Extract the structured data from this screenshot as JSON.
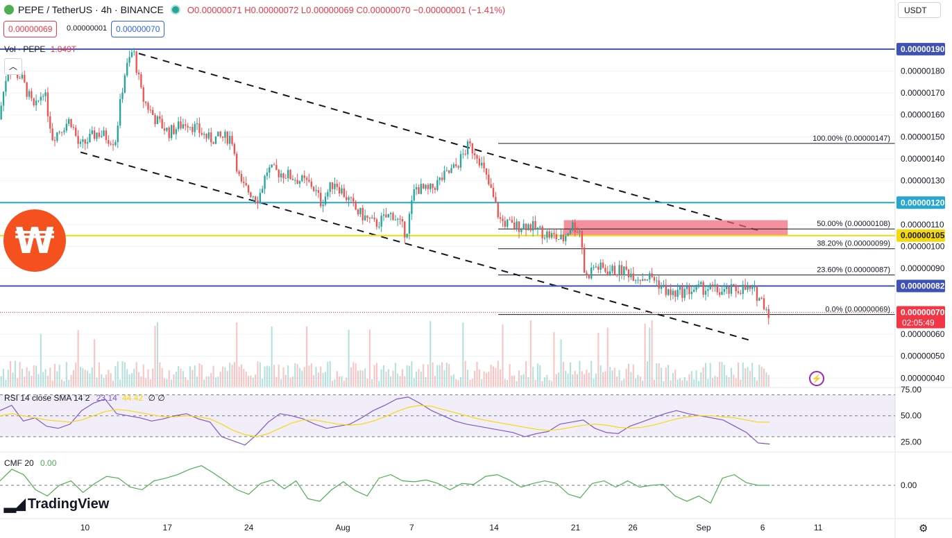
{
  "header": {
    "symbol_title": "PEPE / TetherUS · 4h · BINANCE",
    "ohlc": "O0.00000071 H0.00000072 L0.00000069 C0.00000070 −0.00000001 (−1.41%)",
    "sell_price": "0.00000069",
    "spread": "0.00000001",
    "buy_price": "0.00000070",
    "currency_select": "USDT"
  },
  "colors": {
    "up": "#26a69a",
    "down": "#ef5350",
    "resistance_blue": "#3f51b5",
    "cyan": "#26a6d1",
    "yellow": "#f5d90a",
    "rsi_line": "#7e57c2",
    "rsi_sma": "#f5d90a",
    "cmf_line": "#4caf50",
    "zone": "#f06373"
  },
  "chart_data": [
    {
      "type": "candlestick",
      "title": "PEPE / TetherUS · 4h · BINANCE",
      "volume_label": "Vol · PEPE",
      "volume_value": "1.849T",
      "ylim": [
        3.6e-07,
        1.95e-06
      ],
      "x_tick_labels": [
        "10",
        "17",
        "24",
        "Aug",
        "7",
        "14",
        "21",
        "26",
        "Sep",
        "6",
        "11"
      ],
      "y_tick_labels": [
        "0.00000180",
        "0.00000170",
        "0.00000160",
        "0.00000150",
        "0.00000140",
        "0.00000130",
        "0.00000110",
        "0.00000100",
        "0.00000090",
        "0.00000060",
        "0.00000050",
        "0.00000040"
      ],
      "horizontal_levels": [
        {
          "label": "0.00000190",
          "value": 1.9e-06,
          "color": "#3f51b5"
        },
        {
          "label": "0.00000120",
          "value": 1.2e-06,
          "color": "#26a6d1"
        },
        {
          "label": "0.00000105",
          "value": 1.05e-06,
          "color": "#f5d90a"
        },
        {
          "label": "0.00000082",
          "value": 8.2e-07,
          "color": "#3f51b5"
        }
      ],
      "last_price": {
        "label": "0.00000070",
        "countdown": "02:05:49",
        "value": 7e-07
      },
      "fibonacci": [
        {
          "label": "100.00% (0.00000147)",
          "value": 1.47e-06
        },
        {
          "label": "50.00% (0.00000108)",
          "value": 1.08e-06
        },
        {
          "label": "38.20% (0.00000099)",
          "value": 9.9e-07
        },
        {
          "label": "23.60% (0.00000087)",
          "value": 8.7e-07
        },
        {
          "label": "0.0% (0.00000069)",
          "value": 6.9e-07
        }
      ],
      "channel_upper": [
        [
          0.155,
          1.88e-06
        ],
        [
          0.85,
          1.07e-06
        ]
      ],
      "channel_lower": [
        [
          0.09,
          1.43e-06
        ],
        [
          0.84,
          5.7e-07
        ]
      ],
      "zone": {
        "from_x": 0.63,
        "to_x": 0.88,
        "low": 1.05e-06,
        "high": 1.12e-06
      },
      "price_path": [
        [
          0.0,
          1.58e-06
        ],
        [
          0.01,
          1.82e-06
        ],
        [
          0.025,
          1.77e-06
        ],
        [
          0.04,
          1.62e-06
        ],
        [
          0.05,
          1.72e-06
        ],
        [
          0.06,
          1.5e-06
        ],
        [
          0.08,
          1.58e-06
        ],
        [
          0.09,
          1.45e-06
        ],
        [
          0.11,
          1.52e-06
        ],
        [
          0.13,
          1.48e-06
        ],
        [
          0.14,
          1.78e-06
        ],
        [
          0.15,
          1.9e-06
        ],
        [
          0.16,
          1.68e-06
        ],
        [
          0.175,
          1.58e-06
        ],
        [
          0.19,
          1.52e-06
        ],
        [
          0.21,
          1.57e-06
        ],
        [
          0.235,
          1.49e-06
        ],
        [
          0.26,
          1.5e-06
        ],
        [
          0.27,
          1.28e-06
        ],
        [
          0.29,
          1.22e-06
        ],
        [
          0.3,
          1.35e-06
        ],
        [
          0.32,
          1.33e-06
        ],
        [
          0.35,
          1.28e-06
        ],
        [
          0.36,
          1.2e-06
        ],
        [
          0.375,
          1.3e-06
        ],
        [
          0.4,
          1.16e-06
        ],
        [
          0.42,
          1.1e-06
        ],
        [
          0.44,
          1.15e-06
        ],
        [
          0.455,
          1.06e-06
        ],
        [
          0.465,
          1.27e-06
        ],
        [
          0.48,
          1.25e-06
        ],
        [
          0.495,
          1.31e-06
        ],
        [
          0.51,
          1.36e-06
        ],
        [
          0.525,
          1.46e-06
        ],
        [
          0.535,
          1.42e-06
        ],
        [
          0.55,
          1.25e-06
        ],
        [
          0.56,
          1.12e-06
        ],
        [
          0.575,
          1.09e-06
        ],
        [
          0.59,
          1.1e-06
        ],
        [
          0.61,
          1.06e-06
        ],
        [
          0.63,
          1.03e-06
        ],
        [
          0.64,
          1.1e-06
        ],
        [
          0.65,
          1.07e-06
        ],
        [
          0.655,
          8.5e-07
        ],
        [
          0.665,
          9.1e-07
        ],
        [
          0.68,
          8.9e-07
        ],
        [
          0.7,
          8.9e-07
        ],
        [
          0.715,
          8.6e-07
        ],
        [
          0.73,
          8.6e-07
        ],
        [
          0.74,
          8.2e-07
        ],
        [
          0.75,
          7.8e-07
        ],
        [
          0.77,
          8e-07
        ],
        [
          0.79,
          8.1e-07
        ],
        [
          0.81,
          7.9e-07
        ],
        [
          0.83,
          8.1e-07
        ],
        [
          0.845,
          7.9e-07
        ],
        [
          0.855,
          7.4e-07
        ],
        [
          0.86,
          7e-07
        ]
      ]
    },
    {
      "type": "line",
      "title": "RSI 14 close SMA 14 2",
      "rsi_value": "23.14",
      "sma_value": "44.42",
      "extra_values": "∅ ∅",
      "y_tick_labels": [
        "75.00",
        "50.00",
        "25.00"
      ],
      "band": [
        30,
        70
      ],
      "ylim": [
        18,
        75
      ],
      "series": [
        {
          "name": "RSI",
          "values": [
            55,
            60,
            45,
            48,
            40,
            38,
            42,
            55,
            62,
            66,
            52,
            50,
            48,
            45,
            47,
            50,
            52,
            47,
            44,
            30,
            26,
            22,
            32,
            44,
            52,
            50,
            47,
            42,
            38,
            40,
            42,
            48,
            55,
            60,
            66,
            68,
            62,
            55,
            50,
            45,
            42,
            40,
            38,
            36,
            34,
            30,
            33,
            35,
            42,
            44,
            46,
            38,
            34,
            33,
            40,
            44,
            48,
            52,
            55,
            52,
            50,
            48,
            46,
            40,
            34,
            24,
            23
          ]
        },
        {
          "name": "SMA",
          "values": [
            50,
            52,
            50,
            48,
            46,
            45,
            44,
            46,
            50,
            54,
            56,
            55,
            53,
            51,
            49,
            49,
            50,
            49,
            47,
            42,
            36,
            32,
            30,
            33,
            38,
            43,
            46,
            46,
            44,
            42,
            41,
            42,
            45,
            49,
            54,
            58,
            60,
            59,
            56,
            53,
            50,
            47,
            45,
            43,
            41,
            39,
            37,
            36,
            37,
            39,
            41,
            42,
            41,
            39,
            38,
            39,
            41,
            44,
            47,
            49,
            50,
            50,
            49,
            48,
            46,
            44,
            44
          ]
        }
      ]
    },
    {
      "type": "line",
      "title": "CMF 20",
      "cmf_value": "0.00",
      "y_tick_labels": [
        "0.00"
      ],
      "ylim": [
        -0.35,
        0.35
      ],
      "series": [
        {
          "name": "CMF",
          "values": [
            0.05,
            0.18,
            0.12,
            -0.05,
            -0.12,
            0.0,
            0.05,
            -0.08,
            0.02,
            0.1,
            0.08,
            -0.02,
            -0.05,
            0.05,
            0.08,
            0.12,
            0.18,
            0.22,
            0.14,
            0.05,
            -0.05,
            -0.1,
            0.02,
            0.06,
            -0.04,
            0.05,
            -0.15,
            -0.18,
            -0.05,
            0.04,
            -0.06,
            -0.12,
            0.08,
            0.12,
            0.05,
            0.04,
            0.06,
            0.02,
            -0.05,
            0.02,
            0.01,
            0.1,
            0.12,
            0.06,
            -0.02,
            0.02,
            0.05,
            0.02,
            -0.1,
            -0.14,
            0.02,
            0.05,
            -0.02,
            0.05,
            -0.02,
            0.0,
            0.01,
            -0.12,
            -0.18,
            -0.12,
            -0.2,
            0.08,
            0.12,
            0.03,
            0.0,
            0.0
          ]
        }
      ]
    }
  ],
  "branding": {
    "tradingview": "TradingView"
  }
}
